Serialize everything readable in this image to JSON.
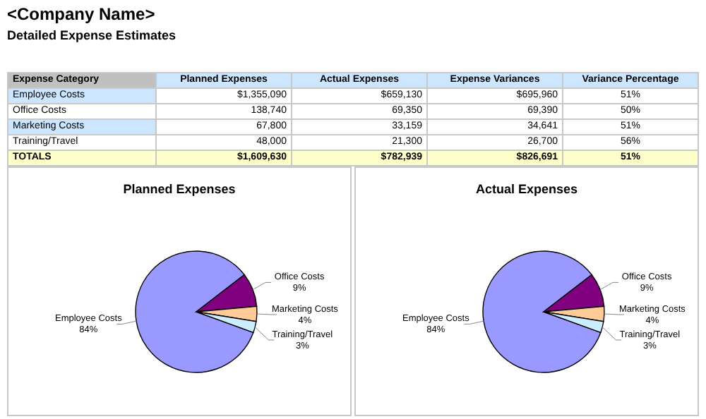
{
  "chart_data": [
    {
      "type": "other",
      "title": "<Company Name>",
      "subtitle": "Detailed Expense Estimates",
      "xlabel": "Expense Category",
      "categories": [
        "Employee Costs",
        "Office Costs",
        "Marketing Costs",
        "Training/Travel",
        "TOTALS"
      ],
      "series": [
        {
          "name": "Planned Expenses",
          "colors": [
            "#ffffff",
            "#ffffff",
            "#ffffff",
            "#ffffff",
            "#ffffcc"
          ],
          "values": [
            1355090,
            138740,
            67800,
            48000,
            1609630
          ],
          "value_labels": [
            "$1,355,090",
            "138,740",
            "67,800",
            "48,000",
            "$1,609,630"
          ]
        },
        {
          "name": "Actual Expenses",
          "colors": [
            "#ffffff",
            "#ffffff",
            "#ffffff",
            "#ffffff",
            "#ffffcc"
          ],
          "values": [
            659130,
            69350,
            33159,
            21300,
            782939
          ],
          "value_labels": [
            "$659,130",
            "69,350",
            "33,159",
            "21,300",
            "$782,939"
          ]
        },
        {
          "name": "Expense Variances",
          "colors": [
            "#ffffff",
            "#ffffff",
            "#ffffff",
            "#ffffff",
            "#ffffcc"
          ],
          "values": [
            695960,
            69390,
            34641,
            26700,
            826691
          ],
          "value_labels": [
            "$695,960",
            "69,390",
            "34,641",
            "26,700",
            "$826,691"
          ]
        },
        {
          "name": "Variance Percentage",
          "colors": [
            "#ffffff",
            "#ffffff",
            "#ffffff",
            "#ffffff",
            "#ffffcc"
          ],
          "values": [
            51,
            50,
            51,
            56,
            51
          ],
          "value_labels": [
            "51%",
            "50%",
            "51%",
            "56%",
            "51%"
          ]
        }
      ]
    },
    {
      "type": "pie",
      "title": "Planned Expenses",
      "categories": [
        "Employee Costs",
        "Office Costs",
        "Marketing Costs",
        "Training/Travel"
      ],
      "values": [
        84,
        9,
        4,
        3
      ],
      "value_labels": [
        "84%",
        "9%",
        "4%",
        "3%"
      ],
      "colors": [
        "#9999ff",
        "#800080",
        "#ffcc99",
        "#ccecff"
      ]
    },
    {
      "type": "pie",
      "title": "Actual Expenses",
      "categories": [
        "Employee Costs",
        "Office Costs",
        "Marketing Costs",
        "Training/Travel"
      ],
      "values": [
        84,
        9,
        4,
        3
      ],
      "value_labels": [
        "84%",
        "9%",
        "4%",
        "3%"
      ],
      "colors": [
        "#9999ff",
        "#800080",
        "#ffcc99",
        "#ccecff"
      ]
    }
  ]
}
